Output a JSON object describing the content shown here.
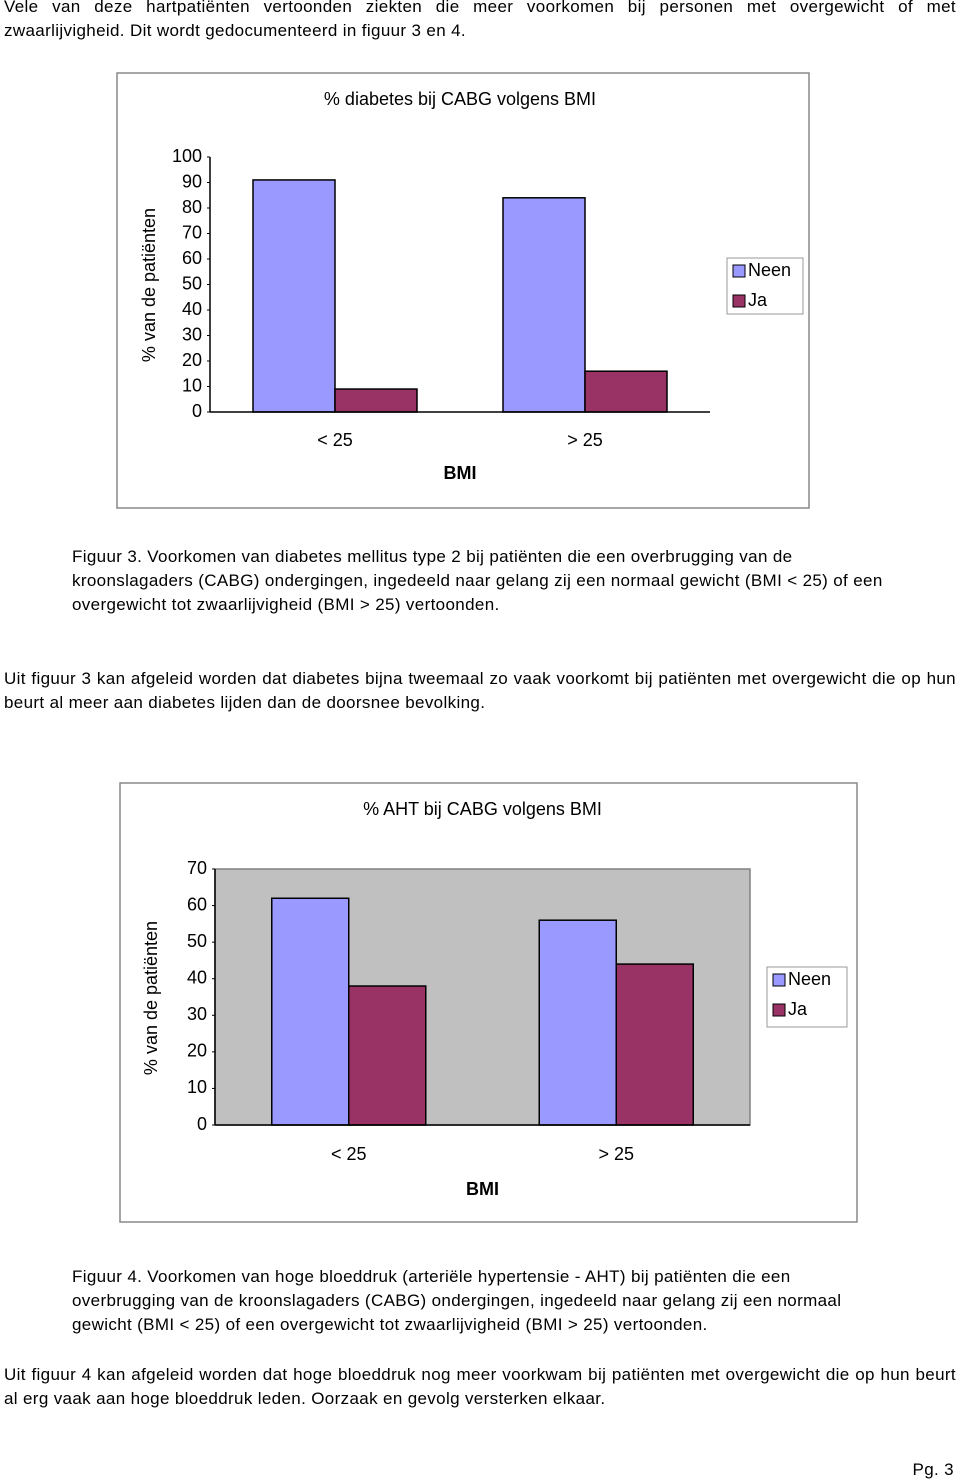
{
  "paragraphs": [
    "Vele van deze hartpatiënten vertoonden ziekten die meer voorkomen bij personen met overgewicht of met zwaarlijvigheid. Dit wordt gedocumenteerd in figuur 3 en 4.",
    "Uit figuur 3 kan afgeleid worden dat diabetes bijna tweemaal zo vaak voorkomt bij patiënten met overgewicht die op hun beurt al meer aan diabetes lijden dan de doorsnee bevolking.",
    "Uit figuur 4 kan afgeleid worden dat hoge bloeddruk nog meer voorkwam bij patiënten met overgewicht die op hun beurt al erg vaak aan hoge bloeddruk leden. Oorzaak en gevolg versterken elkaar."
  ],
  "captions": [
    "Figuur 3. Voorkomen van diabetes mellitus type 2 bij patiënten die een overbrugging van de kroonslagaders (CABG) ondergingen, ingedeeld naar gelang zij een normaal gewicht (BMI < 25) of een overgewicht tot zwaarlijvigheid (BMI > 25) vertoonden.",
    "Figuur 4. Voorkomen van hoge bloeddruk (arteriële hypertensie - AHT) bij patiënten die een overbrugging van de kroonslagaders (CABG) ondergingen, ingedeeld naar gelang zij een normaal gewicht (BMI < 25) of een overgewicht tot zwaarlijvigheid (BMI > 25) vertoonden."
  ],
  "footer": "Pg. 3",
  "chart_data": [
    {
      "type": "bar",
      "title": "% diabetes bij CABG volgens BMI",
      "x_label": "BMI",
      "y_label": "% van de patiënten",
      "categories": [
        "< 25",
        "> 25"
      ],
      "series": [
        {
          "name": "Neen",
          "color": "#9999ff",
          "values": [
            91,
            84
          ]
        },
        {
          "name": "Ja",
          "color": "#993366",
          "values": [
            9,
            16
          ]
        }
      ],
      "ylim": [
        0,
        100
      ],
      "yticks": [
        0,
        10,
        20,
        30,
        40,
        50,
        60,
        70,
        80,
        90,
        100
      ],
      "grid": false,
      "plot_bg": "#ffffff",
      "legend": "right"
    },
    {
      "type": "bar",
      "title": "% AHT bij CABG volgens BMI",
      "x_label": "BMI",
      "y_label": "% van de patiënten",
      "categories": [
        "< 25",
        "> 25"
      ],
      "series": [
        {
          "name": "Neen",
          "color": "#9999ff",
          "values": [
            62,
            56
          ]
        },
        {
          "name": "Ja",
          "color": "#993366",
          "values": [
            38,
            44
          ]
        }
      ],
      "ylim": [
        0,
        70
      ],
      "yticks": [
        0,
        10,
        20,
        30,
        40,
        50,
        60,
        70
      ],
      "grid": false,
      "plot_bg": "#c0c0c0",
      "legend": "right"
    }
  ]
}
